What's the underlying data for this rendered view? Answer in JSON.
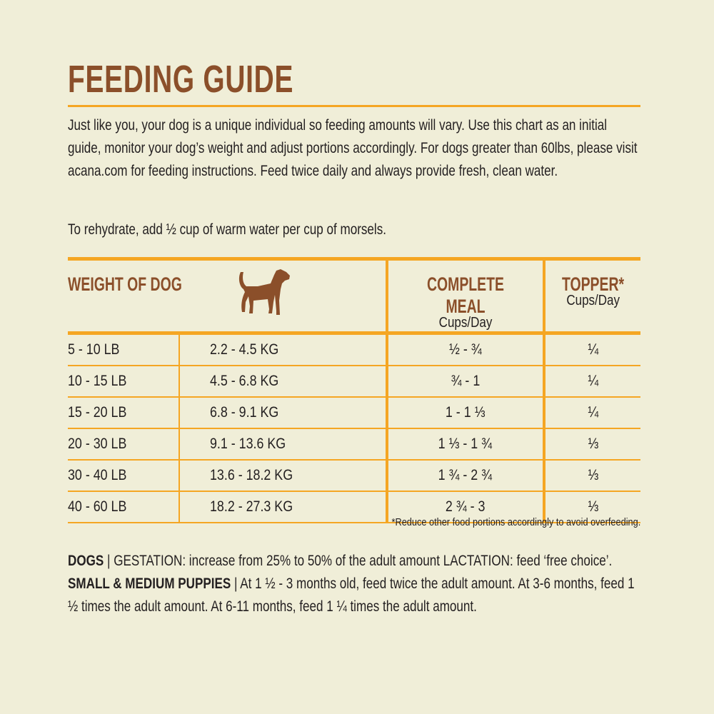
{
  "title": "FEEDING GUIDE",
  "intro": "Just like you, your dog is a unique individual so feeding amounts will vary. Use this chart as an initial guide, monitor your dog’s weight and adjust portions accordingly. For dogs greater than 60lbs, please visit acana.com for feeding instructions. Feed twice daily and always provide fresh, clean water.",
  "rehydrate": "To rehydrate, add ½ cup of warm water per cup of morsels.",
  "table": {
    "headers": {
      "weight": "WEIGHT OF DOG",
      "complete_meal": "COMPLETE MEAL",
      "complete_meal_unit": "Cups/Day",
      "topper": "TOPPER*",
      "topper_unit": "Cups/Day"
    },
    "dog_icon": "dog-silhouette-icon",
    "rows": [
      {
        "lb": "5 - 10 LB",
        "kg": "2.2 - 4.5 KG",
        "meal": "½ - ¾",
        "topper": "¼"
      },
      {
        "lb": "10 - 15 LB",
        "kg": "4.5 - 6.8 KG",
        "meal": "¾ - 1",
        "topper": "¼"
      },
      {
        "lb": "15 - 20 LB",
        "kg": "6.8 - 9.1 KG",
        "meal": "1 - 1 ⅓",
        "topper": "¼"
      },
      {
        "lb": "20 - 30 LB",
        "kg": "9.1 - 13.6 KG",
        "meal": "1 ⅓ - 1 ¾",
        "topper": "⅓"
      },
      {
        "lb": "30 - 40 LB",
        "kg": "13.6 - 18.2 KG",
        "meal": "1 ¾ - 2 ¾",
        "topper": "⅓"
      },
      {
        "lb": "40 - 60 LB",
        "kg": "18.2 - 27.3 KG",
        "meal": "2 ¾ - 3",
        "topper": "⅓"
      }
    ]
  },
  "footnote": "*Reduce other food portions accordingly to avoid overfeeding.",
  "notes": {
    "dogs_label": "DOGS",
    "dogs_text": " | GESTATION: increase from 25% to 50% of the adult amount LACTATION: feed ‘free choice’. ",
    "puppies_label": "SMALL & MEDIUM PUPPIES",
    "puppies_text": " | At 1 ½ - 3 months old, feed twice the adult amount. At 3-6 months, feed 1 ½ times the adult amount. At 6-11 months, feed 1 ¼ times the adult amount."
  },
  "colors": {
    "background": "#f0eed8",
    "accent": "#f5a623",
    "brown": "#8b4f2a"
  }
}
